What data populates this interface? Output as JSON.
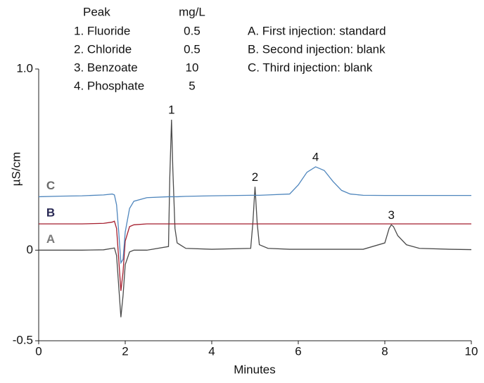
{
  "chart_data": {
    "type": "line",
    "x_label": "Minutes",
    "y_label": "µS/cm",
    "xlim": [
      0,
      10
    ],
    "xticks": [
      0,
      2,
      4,
      6,
      8,
      10
    ],
    "ylim": [
      -0.5,
      1.0
    ],
    "yticks": [
      {
        "value": 1.0,
        "label": "1.0"
      },
      0,
      -0.5
    ],
    "grid": false,
    "x": [
      0,
      0.5,
      1,
      1.5,
      1.7,
      1.75,
      1.8,
      1.85,
      1.9,
      1.95,
      2.0,
      2.1,
      2.2,
      2.5,
      3.0,
      3.03,
      3.07,
      3.1,
      3.15,
      3.2,
      3.4,
      4.0,
      4.9,
      4.95,
      5.0,
      5.05,
      5.1,
      5.3,
      5.8,
      6.0,
      6.2,
      6.4,
      6.6,
      6.8,
      7.0,
      7.2,
      7.5,
      8.0,
      8.1,
      8.15,
      8.2,
      8.3,
      8.5,
      8.8,
      9.5,
      10
    ],
    "series": [
      {
        "name": "A",
        "color": "#4a4a4a",
        "label_color": "#7a7a7a",
        "values": [
          0,
          0,
          0,
          0.002,
          0.01,
          0.012,
          -0.03,
          -0.2,
          -0.37,
          -0.25,
          -0.08,
          -0.01,
          0,
          0,
          0.02,
          0.4,
          0.72,
          0.45,
          0.12,
          0.04,
          0.01,
          0.005,
          0.01,
          0.15,
          0.35,
          0.15,
          0.03,
          0.01,
          0.005,
          0.005,
          0.005,
          0.005,
          0.005,
          0.005,
          0.005,
          0.005,
          0.005,
          0.04,
          0.12,
          0.14,
          0.13,
          0.08,
          0.03,
          0.01,
          0.005,
          0.003
        ]
      },
      {
        "name": "B",
        "color": "#a51d2d",
        "label_color": "#2a2a55",
        "values": [
          0.145,
          0.145,
          0.145,
          0.148,
          0.155,
          0.16,
          0.12,
          -0.05,
          -0.225,
          -0.12,
          0.05,
          0.13,
          0.14,
          0.145,
          0.145,
          0.145,
          0.145,
          0.145,
          0.145,
          0.145,
          0.145,
          0.145,
          0.145,
          0.145,
          0.145,
          0.145,
          0.145,
          0.145,
          0.145,
          0.145,
          0.145,
          0.145,
          0.145,
          0.145,
          0.145,
          0.145,
          0.145,
          0.145,
          0.145,
          0.145,
          0.145,
          0.145,
          0.145,
          0.145,
          0.145,
          0.145
        ]
      },
      {
        "name": "C",
        "color": "#4f86bd",
        "label_color": "#6a6a6a",
        "values": [
          0.295,
          0.298,
          0.3,
          0.305,
          0.31,
          0.305,
          0.25,
          0.1,
          -0.07,
          -0.05,
          0.1,
          0.23,
          0.27,
          0.29,
          0.295,
          0.295,
          0.295,
          0.295,
          0.295,
          0.295,
          0.297,
          0.3,
          0.303,
          0.303,
          0.303,
          0.303,
          0.303,
          0.305,
          0.31,
          0.36,
          0.43,
          0.46,
          0.44,
          0.38,
          0.33,
          0.31,
          0.303,
          0.302,
          0.302,
          0.302,
          0.302,
          0.302,
          0.302,
          0.302,
          0.302,
          0.302
        ]
      }
    ],
    "peak_labels": [
      {
        "text": "1",
        "x": 3.07,
        "y": 0.72
      },
      {
        "text": "2",
        "x": 5.0,
        "y": 0.35
      },
      {
        "text": "3",
        "x": 8.15,
        "y": 0.14
      },
      {
        "text": "4",
        "x": 6.4,
        "y": 0.46
      }
    ],
    "peak_table": {
      "headers": [
        "Peak",
        "mg/L"
      ],
      "rows": [
        [
          "1. Fluoride",
          0.5
        ],
        [
          "2. Chloride",
          0.5
        ],
        [
          "3. Benzoate",
          10
        ],
        [
          "4. Phosphate",
          5
        ]
      ]
    },
    "notes": [
      "A. First injection: standard",
      "B. Second injection: blank",
      "C. Third injection: blank"
    ]
  }
}
